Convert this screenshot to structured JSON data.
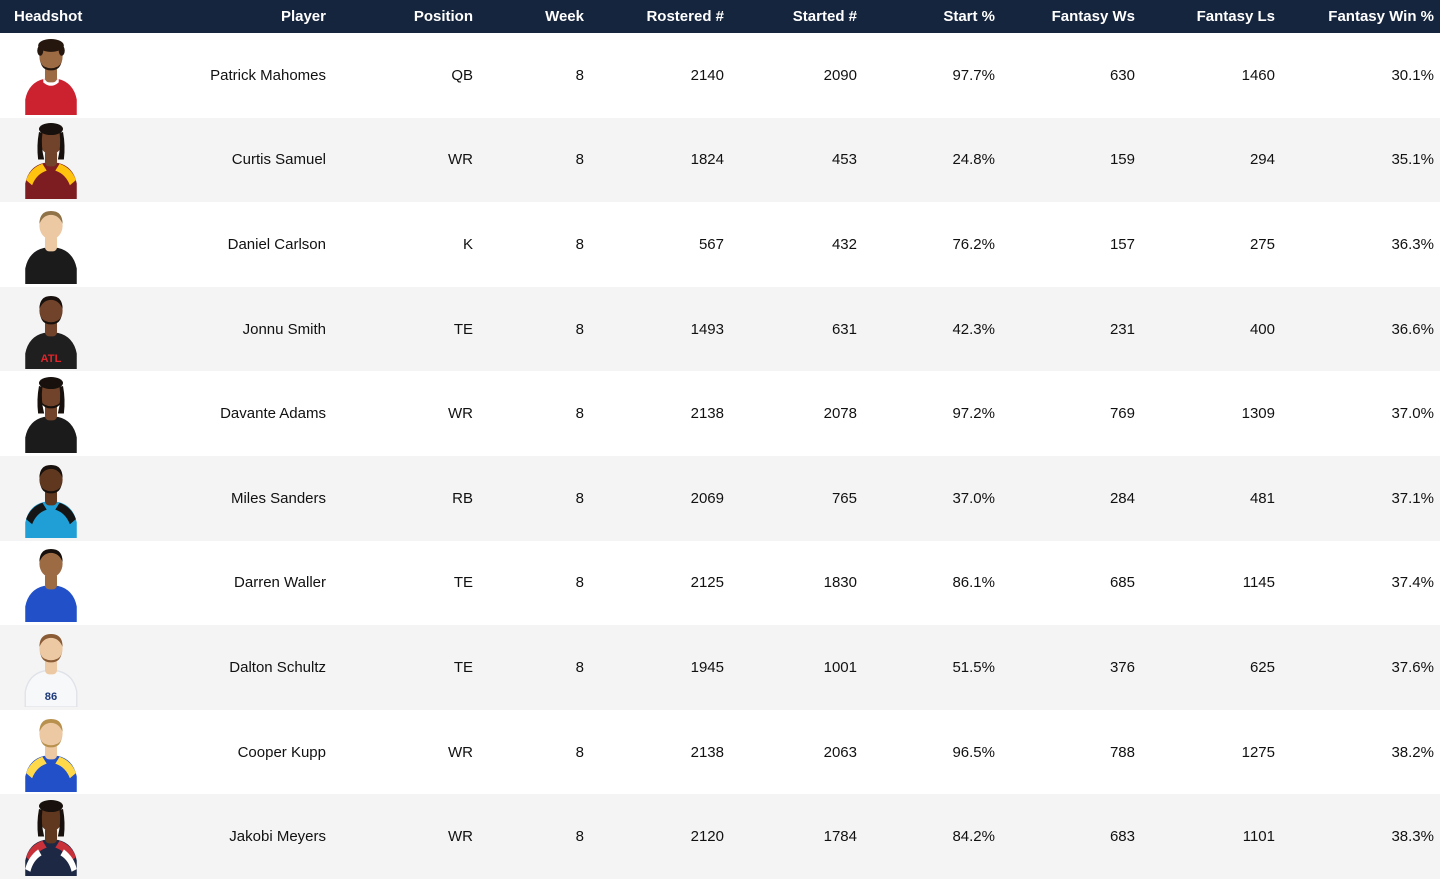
{
  "colors": {
    "header_bg": "#16253e",
    "header_text": "#ffffff",
    "row_bg": "#ffffff",
    "row_alt_bg": "#f4f4f4",
    "cell_text": "#111111"
  },
  "table": {
    "columns": [
      {
        "key": "headshot",
        "label": "Headshot",
        "align": "left"
      },
      {
        "key": "player",
        "label": "Player",
        "align": "right"
      },
      {
        "key": "position",
        "label": "Position",
        "align": "right"
      },
      {
        "key": "week",
        "label": "Week",
        "align": "right"
      },
      {
        "key": "rostered",
        "label": "Rostered #",
        "align": "right"
      },
      {
        "key": "started",
        "label": "Started #",
        "align": "right"
      },
      {
        "key": "start_pct",
        "label": "Start %",
        "align": "right"
      },
      {
        "key": "fantasy_ws",
        "label": "Fantasy Ws",
        "align": "right"
      },
      {
        "key": "fantasy_ls",
        "label": "Fantasy Ls",
        "align": "right"
      },
      {
        "key": "fantasy_win_pct",
        "label": "Fantasy Win %",
        "align": "right"
      }
    ],
    "rows": [
      {
        "player": "Patrick Mahomes",
        "position": "QB",
        "week": "8",
        "rostered": "2140",
        "started": "2090",
        "start_pct": "97.7%",
        "fantasy_ws": "630",
        "fantasy_ls": "1460",
        "fantasy_win_pct": "30.1%",
        "headshot": {
          "team_jersey": "chiefs-red",
          "skin": "#9c6b44",
          "hair": "#26170e",
          "hair_style": "curly",
          "beard": true,
          "jersey": "#cc2230",
          "collar": "#ffffff"
        }
      },
      {
        "player": "Curtis Samuel",
        "position": "WR",
        "week": "8",
        "rostered": "1824",
        "started": "453",
        "start_pct": "24.8%",
        "fantasy_ws": "159",
        "fantasy_ls": "294",
        "fantasy_win_pct": "35.1%",
        "headshot": {
          "team_jersey": "commanders-burgundy",
          "skin": "#70432a",
          "hair": "#17100c",
          "hair_style": "dreads",
          "beard": false,
          "jersey": "#7e1d21",
          "accent": "#ffc20e"
        }
      },
      {
        "player": "Daniel Carlson",
        "position": "K",
        "week": "8",
        "rostered": "567",
        "started": "432",
        "start_pct": "76.2%",
        "fantasy_ws": "157",
        "fantasy_ls": "275",
        "fantasy_win_pct": "36.3%",
        "headshot": {
          "team_jersey": "raiders-black",
          "skin": "#ecc9a3",
          "hair": "#8f7248",
          "hair_style": "short",
          "beard": false,
          "jersey": "#1b1b1b"
        }
      },
      {
        "player": "Jonnu Smith",
        "position": "TE",
        "week": "8",
        "rostered": "1493",
        "started": "631",
        "start_pct": "42.3%",
        "fantasy_ws": "231",
        "fantasy_ls": "400",
        "fantasy_win_pct": "36.6%",
        "headshot": {
          "team_jersey": "falcons-black",
          "skin": "#70432a",
          "hair": "#17100c",
          "hair_style": "short",
          "beard": true,
          "jersey": "#201f1f",
          "jersey_text": "ATL",
          "jersey_text_color": "#e0242b"
        }
      },
      {
        "player": "Davante Adams",
        "position": "WR",
        "week": "8",
        "rostered": "2138",
        "started": "2078",
        "start_pct": "97.2%",
        "fantasy_ws": "769",
        "fantasy_ls": "1309",
        "fantasy_win_pct": "37.0%",
        "headshot": {
          "team_jersey": "raiders-black",
          "skin": "#70432a",
          "hair": "#17100c",
          "hair_style": "dreads",
          "beard": true,
          "jersey": "#1b1b1b"
        }
      },
      {
        "player": "Miles Sanders",
        "position": "RB",
        "week": "8",
        "rostered": "2069",
        "started": "765",
        "start_pct": "37.0%",
        "fantasy_ws": "284",
        "fantasy_ls": "481",
        "fantasy_win_pct": "37.1%",
        "headshot": {
          "team_jersey": "panthers-blue",
          "skin": "#5f381f",
          "hair": "#17100c",
          "hair_style": "short",
          "beard": true,
          "jersey": "#1f9fd6",
          "accent": "#151515"
        }
      },
      {
        "player": "Darren Waller",
        "position": "TE",
        "week": "8",
        "rostered": "2125",
        "started": "1830",
        "start_pct": "86.1%",
        "fantasy_ws": "685",
        "fantasy_ls": "1145",
        "fantasy_win_pct": "37.4%",
        "headshot": {
          "team_jersey": "giants-royal",
          "skin": "#9c6b44",
          "hair": "#17100c",
          "hair_style": "short",
          "beard": false,
          "jersey": "#2150c9"
        }
      },
      {
        "player": "Dalton Schultz",
        "position": "TE",
        "week": "8",
        "rostered": "1945",
        "started": "1001",
        "start_pct": "51.5%",
        "fantasy_ws": "376",
        "fantasy_ls": "625",
        "fantasy_win_pct": "37.6%",
        "headshot": {
          "team_jersey": "white",
          "skin": "#ecc9a3",
          "hair": "#8a5c35",
          "hair_style": "short",
          "beard": true,
          "jersey": "#f7f8fa",
          "jersey_stroke": "#dfe2e8",
          "jersey_text": "86",
          "jersey_text_color": "#1d3a7a"
        }
      },
      {
        "player": "Cooper Kupp",
        "position": "WR",
        "week": "8",
        "rostered": "2138",
        "started": "2063",
        "start_pct": "96.5%",
        "fantasy_ws": "788",
        "fantasy_ls": "1275",
        "fantasy_win_pct": "38.2%",
        "headshot": {
          "team_jersey": "rams-royal",
          "skin": "#ecc9a3",
          "hair": "#b9914e",
          "hair_style": "short",
          "beard": true,
          "jersey": "#2150c9",
          "accent": "#ffd94a"
        }
      },
      {
        "player": "Jakobi Meyers",
        "position": "WR",
        "week": "8",
        "rostered": "2120",
        "started": "1784",
        "start_pct": "84.2%",
        "fantasy_ws": "683",
        "fantasy_ls": "1101",
        "fantasy_win_pct": "38.3%",
        "headshot": {
          "team_jersey": "patriots-navy",
          "skin": "#5f381f",
          "hair": "#17100c",
          "hair_style": "dreads",
          "beard": false,
          "jersey": "#1d2844",
          "accent": "#c8303a",
          "accent2": "#ffffff"
        }
      }
    ]
  }
}
